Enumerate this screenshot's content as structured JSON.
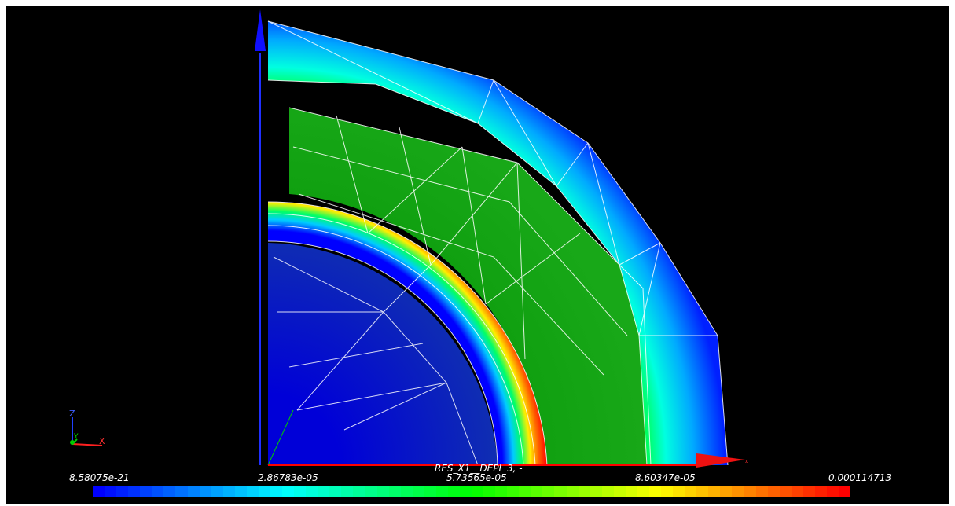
{
  "scalar_bar": {
    "title": "RES_X1__DEPL 3, -",
    "tick_labels": [
      "8.58075e-21",
      "2.86783e-05",
      "5.73565e-05",
      "8.60347e-05",
      "0.000114713"
    ],
    "num_colors": 64
  },
  "orientation_axes": {
    "z_label": "Z",
    "y_label": "Y",
    "x_label": "X"
  },
  "main_axes": {
    "x_label": "x"
  },
  "colors": {
    "background": "#000000",
    "x_axis": "#ff0000",
    "y_axis": "#00cc00",
    "z_axis": "#0000ff",
    "wireframe": "#ffffff"
  }
}
